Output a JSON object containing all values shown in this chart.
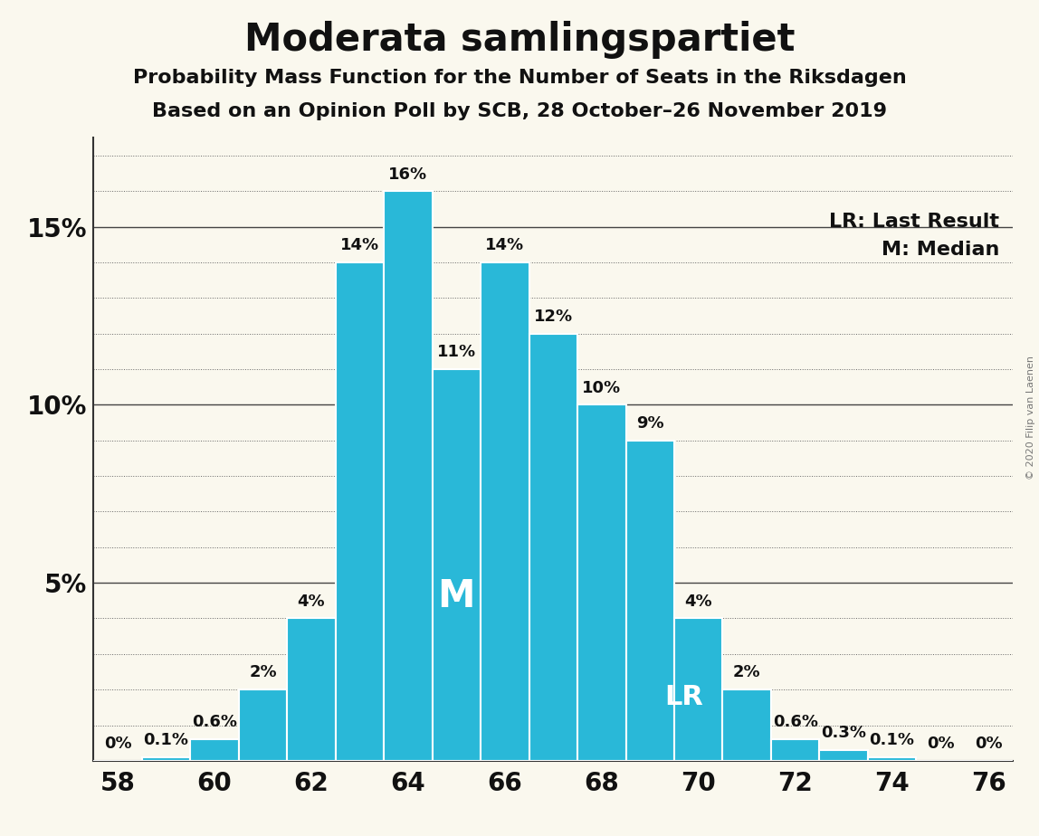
{
  "title": "Moderata samlingspartiet",
  "subtitle1": "Probability Mass Function for the Number of Seats in the Riksdagen",
  "subtitle2": "Based on an Opinion Poll by SCB, 28 October–26 November 2019",
  "copyright": "© 2020 Filip van Laenen",
  "seats": [
    58,
    59,
    60,
    61,
    62,
    63,
    64,
    65,
    66,
    67,
    68,
    69,
    70,
    71,
    72,
    73,
    74,
    75,
    76
  ],
  "probabilities": [
    0.0,
    0.1,
    0.6,
    2.0,
    4.0,
    14.0,
    16.0,
    11.0,
    14.0,
    12.0,
    10.0,
    9.0,
    4.0,
    2.0,
    0.6,
    0.3,
    0.1,
    0.0,
    0.0
  ],
  "bar_labels": [
    "0%",
    "0.1%",
    "0.6%",
    "2%",
    "4%",
    "14%",
    "16%",
    "11%",
    "14%",
    "12%",
    "10%",
    "9%",
    "4%",
    "2%",
    "0.6%",
    "0.3%",
    "0.1%",
    "0%",
    "0%"
  ],
  "bar_color": "#29b8d8",
  "background_color": "#faf8ee",
  "median_seat": 65,
  "lr_seat": 70,
  "lr_label": "LR",
  "median_label": "M",
  "legend_lr": "LR: Last Result",
  "legend_m": "M: Median",
  "ylim_max": 17.5,
  "major_yticks": [
    0,
    5,
    10,
    15
  ],
  "xtick_positions": [
    58,
    60,
    62,
    64,
    66,
    68,
    70,
    72,
    74,
    76
  ],
  "title_fontsize": 30,
  "subtitle_fontsize": 16,
  "axis_tick_fontsize": 20,
  "bar_label_fontsize": 13,
  "legend_fontsize": 16,
  "median_text_fontsize": 30,
  "lr_text_fontsize": 22
}
